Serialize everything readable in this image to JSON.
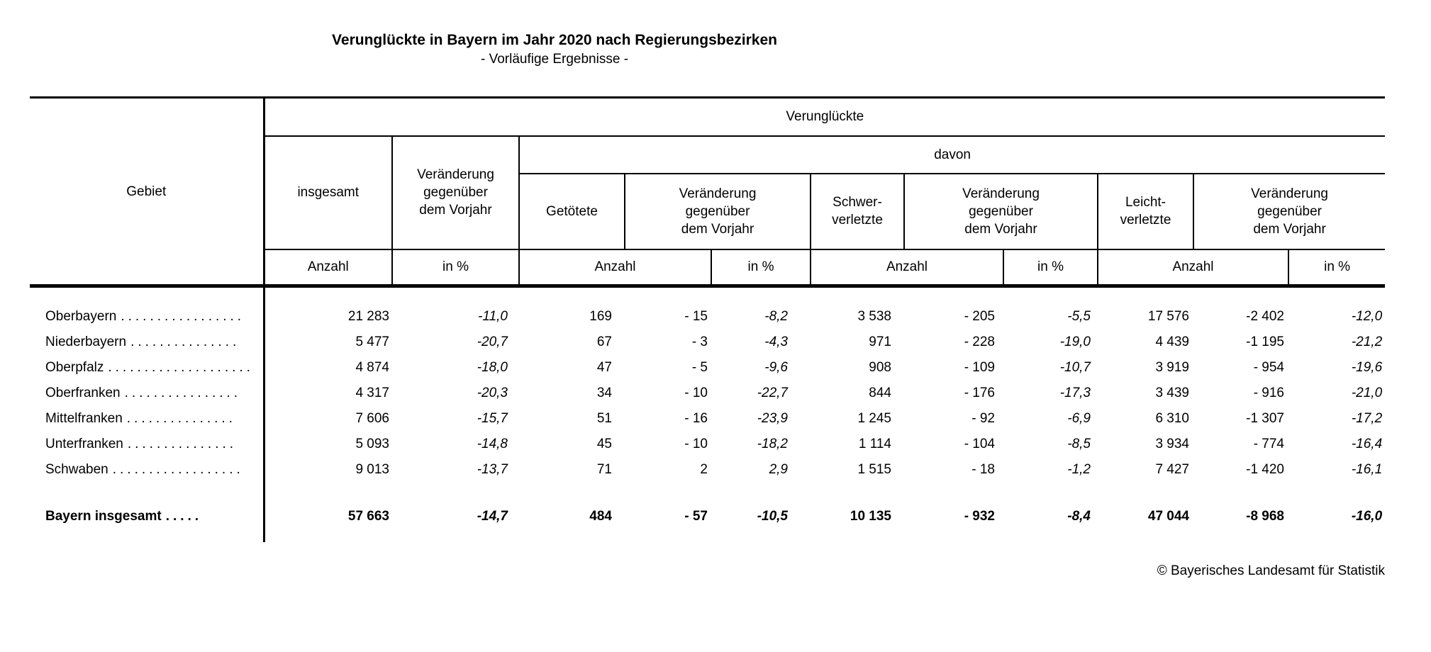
{
  "title": "Verunglückte in Bayern im Jahr 2020 nach Regierungsbezirken",
  "subtitle": "- Vorläufige Ergebnisse -",
  "footer": "© Bayerisches Landesamt für Statistik",
  "table": {
    "header": {
      "gebiet": "Gebiet",
      "verungluckte": "Verunglückte",
      "insgesamt": "insgesamt",
      "veraenderung": "Veränderung\ngegenüber\ndem Vorjahr",
      "davon": "davon",
      "getoetete": "Getötete",
      "schwerverletzte": "Schwer-\nverletzte",
      "leichtverletzte": "Leicht-\nverletzte",
      "anzahl": "Anzahl",
      "in_prozent": "in %"
    },
    "rows": [
      {
        "label": "Oberbayern",
        "dots": ".................",
        "values": [
          "21 283",
          "-11,0",
          "169",
          "- 15",
          "-8,2",
          "3 538",
          "- 205",
          "-5,5",
          "17 576",
          "-2 402",
          "-12,0"
        ]
      },
      {
        "label": "Niederbayern",
        "dots": "...............",
        "values": [
          "5 477",
          "-20,7",
          "67",
          "- 3",
          "-4,3",
          "971",
          "- 228",
          "-19,0",
          "4 439",
          "-1 195",
          "-21,2"
        ]
      },
      {
        "label": "Oberpfalz",
        "dots": "....................",
        "values": [
          "4 874",
          "-18,0",
          "47",
          "- 5",
          "-9,6",
          "908",
          "- 109",
          "-10,7",
          "3 919",
          "- 954",
          "-19,6"
        ]
      },
      {
        "label": "Oberfranken",
        "dots": "................",
        "values": [
          "4 317",
          "-20,3",
          "34",
          "- 10",
          "-22,7",
          "844",
          "- 176",
          "-17,3",
          "3 439",
          "- 916",
          "-21,0"
        ]
      },
      {
        "label": "Mittelfranken",
        "dots": "...............",
        "values": [
          "7 606",
          "-15,7",
          "51",
          "- 16",
          "-23,9",
          "1 245",
          "- 92",
          "-6,9",
          "6 310",
          "-1 307",
          "-17,2"
        ]
      },
      {
        "label": "Unterfranken",
        "dots": "...............",
        "values": [
          "5 093",
          "-14,8",
          "45",
          "- 10",
          "-18,2",
          "1 114",
          "- 104",
          "-8,5",
          "3 934",
          "- 774",
          "-16,4"
        ]
      },
      {
        "label": "Schwaben",
        "dots": "..................",
        "values": [
          "9 013",
          "-13,7",
          "71",
          "2",
          "2,9",
          "1 515",
          "- 18",
          "-1,2",
          "7 427",
          "-1 420",
          "-16,1"
        ]
      }
    ],
    "total_row": {
      "label": "Bayern insgesamt",
      "dots": ".....",
      "values": [
        "57 663",
        "-14,7",
        "484",
        "- 57",
        "-10,5",
        "10 135",
        "- 932",
        "-8,4",
        "47 044",
        "-8 968",
        "-16,0"
      ]
    }
  }
}
